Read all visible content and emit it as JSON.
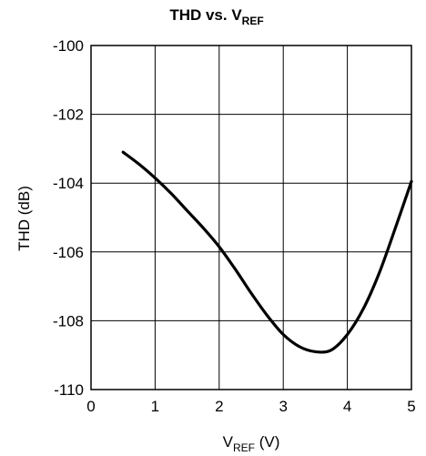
{
  "chart_data": {
    "type": "line",
    "title": {
      "main": "THD vs. V",
      "sub": "REF"
    },
    "xlabel": {
      "main": "V",
      "sub": "REF",
      "unit": " (V)"
    },
    "ylabel": "THD (dB)",
    "xlim": [
      0,
      5
    ],
    "ylim": [
      -110,
      -100
    ],
    "x_ticks": [
      "0",
      "1",
      "2",
      "3",
      "4",
      "5"
    ],
    "y_ticks": [
      "-100",
      "-102",
      "-104",
      "-106",
      "-108",
      "-110"
    ],
    "x_tick_values": [
      0,
      1,
      2,
      3,
      4,
      5
    ],
    "y_tick_values": [
      -100,
      -102,
      -104,
      -106,
      -108,
      -110
    ],
    "grid": true,
    "series": [
      {
        "color": "#000000",
        "x": [
          0.5,
          0.75,
          1.0,
          1.25,
          1.5,
          1.75,
          2.0,
          2.25,
          2.5,
          2.75,
          3.0,
          3.25,
          3.5,
          3.75,
          4.0,
          4.25,
          4.5,
          4.75,
          5.0
        ],
        "y": [
          -103.1,
          -103.45,
          -103.85,
          -104.3,
          -104.8,
          -105.3,
          -105.85,
          -106.5,
          -107.2,
          -107.85,
          -108.4,
          -108.75,
          -108.9,
          -108.85,
          -108.4,
          -107.65,
          -106.6,
          -105.3,
          -103.95
        ]
      }
    ]
  }
}
